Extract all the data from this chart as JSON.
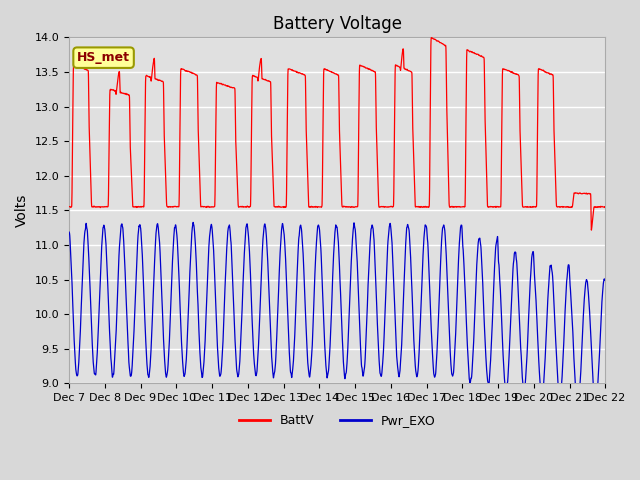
{
  "title": "Battery Voltage",
  "ylabel": "Volts",
  "ylim": [
    9.0,
    14.0
  ],
  "yticks": [
    9.0,
    9.5,
    10.0,
    10.5,
    11.0,
    11.5,
    12.0,
    12.5,
    13.0,
    13.5,
    14.0
  ],
  "xtick_labels": [
    "Dec 7",
    "Dec 8",
    "Dec 9",
    "Dec 10",
    "Dec 11",
    "Dec 12",
    "Dec 13",
    "Dec 14",
    "Dec 15",
    "Dec 16",
    "Dec 17",
    "Dec 18",
    "Dec 19",
    "Dec 20",
    "Dec 21",
    "Dec 22"
  ],
  "legend_entries": [
    "BattV",
    "Pwr_EXO"
  ],
  "legend_colors": [
    "#ff0000",
    "#0000cc"
  ],
  "line_color_battv": "#ff0000",
  "line_color_pwr": "#0000cc",
  "annotation_text": "HS_met",
  "annotation_box_color": "#ffff99",
  "annotation_box_edge": "#999900",
  "background_color": "#e0e0e0",
  "grid_color": "#ffffff",
  "title_fontsize": 12,
  "label_fontsize": 10,
  "tick_fontsize": 8,
  "n_days": 15,
  "figsize": [
    6.4,
    4.8
  ],
  "dpi": 100
}
